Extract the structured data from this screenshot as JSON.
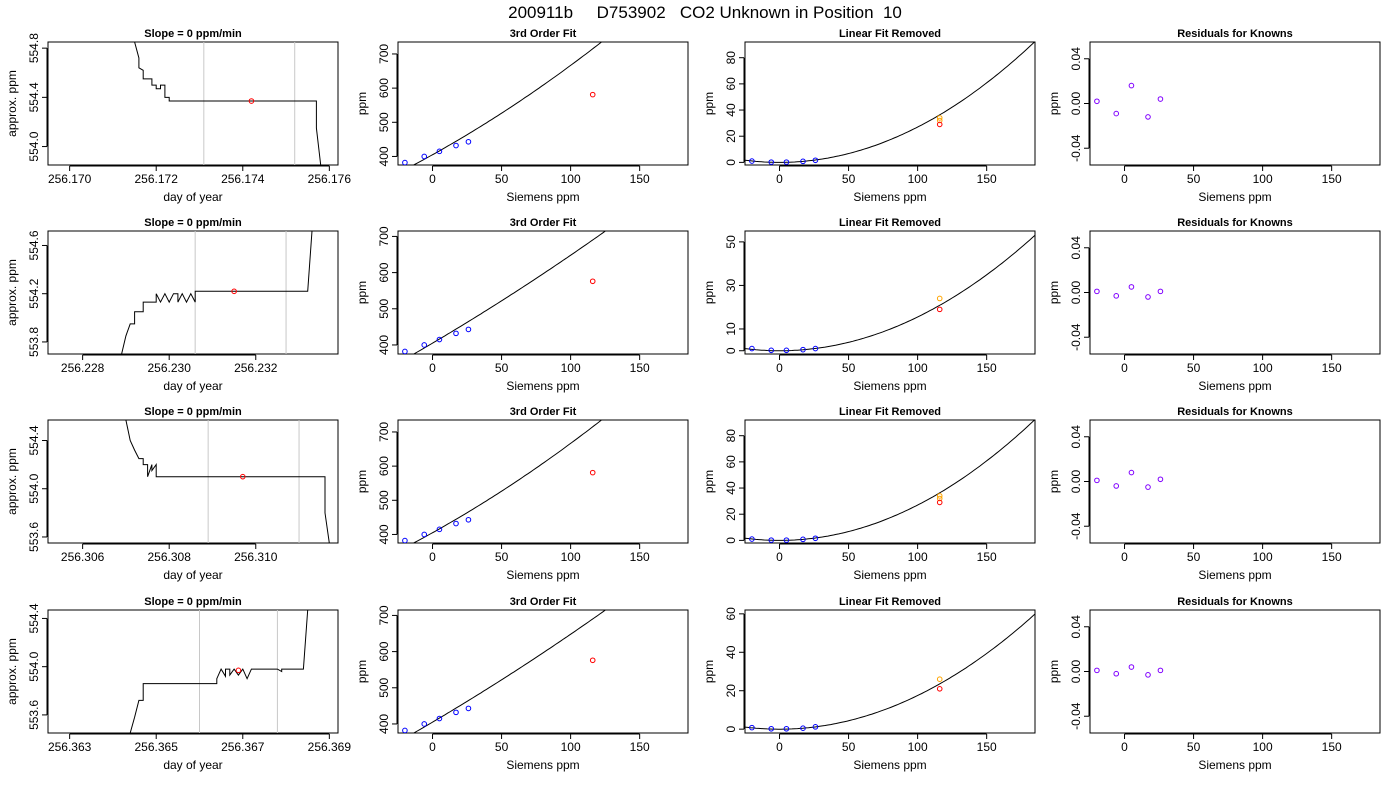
{
  "page_title": "200911b     D753902   CO2 Unknown in Position  10",
  "chart_data": [
    {
      "type": "line",
      "title": "Slope =  0  ppm/min",
      "xlabel": "day of year",
      "ylabel": "approx. ppm",
      "xlim": [
        256.1695,
        256.1762
      ],
      "ylim": [
        553.85,
        554.85
      ],
      "xticks": [
        256.17,
        256.172,
        256.174,
        256.176
      ],
      "xtick_labels": [
        "256.170",
        "256.172",
        "256.174",
        "256.176"
      ],
      "yticks": [
        554.0,
        554.4,
        554.8
      ],
      "ytick_labels": [
        "554.0",
        "554.4",
        "554.8"
      ],
      "vlines": [
        256.1731,
        256.1752
      ],
      "marker": {
        "x": 256.1742,
        "y": 554.37
      },
      "trace": [
        [
          256.1715,
          554.85
        ],
        [
          256.1716,
          554.72
        ],
        [
          256.1716,
          554.64
        ],
        [
          256.1717,
          554.62
        ],
        [
          256.1717,
          554.55
        ],
        [
          256.1719,
          554.55
        ],
        [
          256.1719,
          554.5
        ],
        [
          256.172,
          554.5
        ],
        [
          256.172,
          554.47
        ],
        [
          256.1721,
          554.47
        ],
        [
          256.1721,
          554.5
        ],
        [
          256.1722,
          554.5
        ],
        [
          256.1722,
          554.44
        ],
        [
          256.1722,
          554.47
        ],
        [
          256.1722,
          554.4
        ],
        [
          256.1723,
          554.4
        ],
        [
          256.1723,
          554.37
        ],
        [
          256.1757,
          554.37
        ],
        [
          256.1757,
          554.15
        ],
        [
          256.1758,
          553.85
        ]
      ]
    },
    {
      "type": "scatter",
      "title": "3rd Order Fit",
      "xlabel": "Siemens ppm",
      "ylabel": "ppm",
      "xlim": [
        -25,
        185
      ],
      "ylim": [
        375,
        735
      ],
      "xticks": [
        0,
        50,
        100,
        150
      ],
      "xtick_labels": [
        "0",
        "50",
        "100",
        "150"
      ],
      "yticks": [
        400,
        500,
        600,
        700
      ],
      "ytick_labels": [
        "400",
        "500",
        "600",
        "700"
      ],
      "curve": {
        "coeffs": [
          405,
          2.25,
          0.00365,
          0
        ]
      },
      "known_points": {
        "x": [
          -20,
          -6,
          5,
          17,
          26
        ],
        "y": [
          382,
          400,
          415,
          432,
          443
        ]
      },
      "unknown_points": {
        "x": [
          116
        ],
        "y": [
          581
        ]
      }
    },
    {
      "type": "scatter",
      "title": "Linear Fit Removed",
      "xlabel": "Siemens ppm",
      "ylabel": "ppm",
      "xlim": [
        -25,
        185
      ],
      "ylim": [
        -2,
        92
      ],
      "xticks": [
        0,
        50,
        100,
        150
      ],
      "xtick_labels": [
        "0",
        "50",
        "100",
        "150"
      ],
      "yticks": [
        0,
        20,
        40,
        60,
        80
      ],
      "ytick_labels": [
        "0",
        "20",
        "40",
        "60",
        "80"
      ],
      "curve": {
        "coeffs": [
          0,
          0,
          0.0027,
          0
        ]
      },
      "known_points": {
        "x": [
          -20,
          -6,
          5,
          17,
          26
        ],
        "y": [
          1,
          0.2,
          0.2,
          0.8,
          1.6
        ]
      },
      "unknown_points": {
        "x": [
          116
        ],
        "y": [
          29
        ]
      },
      "orange_points": {
        "x": [
          116,
          116
        ],
        "y": [
          32,
          34
        ]
      }
    },
    {
      "type": "scatter",
      "title": "Residuals for Knowns",
      "xlabel": "Siemens ppm",
      "ylabel": "ppm",
      "xlim": [
        -25,
        185
      ],
      "ylim": [
        -0.055,
        0.055
      ],
      "xticks": [
        0,
        50,
        100,
        150
      ],
      "xtick_labels": [
        "0",
        "50",
        "100",
        "150"
      ],
      "yticks": [
        -0.04,
        0,
        0.04
      ],
      "ytick_labels": [
        "-0.04",
        "0.00",
        "0.04"
      ],
      "points": {
        "x": [
          -20,
          -6,
          5,
          17,
          26
        ],
        "y": [
          0.002,
          -0.009,
          0.016,
          -0.012,
          0.004
        ]
      }
    },
    {
      "type": "line",
      "title": "Slope =  0  ppm/min",
      "xlabel": "day of year",
      "ylabel": "approx. ppm",
      "xlim": [
        256.2272,
        256.2339
      ],
      "ylim": [
        553.7,
        554.72
      ],
      "xticks": [
        256.228,
        256.23,
        256.232
      ],
      "xtick_labels": [
        "256.228",
        "256.230",
        "256.232"
      ],
      "yticks": [
        553.8,
        554.2,
        554.6
      ],
      "ytick_labels": [
        "553.8",
        "554.2",
        "554.6"
      ],
      "vlines": [
        256.2306,
        256.2327
      ],
      "marker": {
        "x": 256.2315,
        "y": 554.22
      },
      "trace": [
        [
          256.2289,
          553.7
        ],
        [
          256.229,
          553.85
        ],
        [
          256.2291,
          553.95
        ],
        [
          256.2292,
          553.95
        ],
        [
          256.2292,
          554.05
        ],
        [
          256.2294,
          554.05
        ],
        [
          256.2294,
          554.13
        ],
        [
          256.2297,
          554.13
        ],
        [
          256.2297,
          554.2
        ],
        [
          256.2298,
          554.13
        ],
        [
          256.2299,
          554.2
        ],
        [
          256.23,
          554.13
        ],
        [
          256.2301,
          554.2
        ],
        [
          256.2302,
          554.2
        ],
        [
          256.2302,
          554.13
        ],
        [
          256.2303,
          554.2
        ],
        [
          256.2304,
          554.13
        ],
        [
          256.2305,
          554.2
        ],
        [
          256.2306,
          554.13
        ],
        [
          256.2306,
          554.22
        ],
        [
          256.2332,
          554.22
        ],
        [
          256.2333,
          554.72
        ]
      ]
    },
    {
      "type": "scatter",
      "title": "3rd Order Fit",
      "xlabel": "Siemens ppm",
      "ylabel": "ppm",
      "xlim": [
        -25,
        185
      ],
      "ylim": [
        375,
        715
      ],
      "xticks": [
        0,
        50,
        100,
        150
      ],
      "xtick_labels": [
        "0",
        "50",
        "100",
        "150"
      ],
      "yticks": [
        400,
        500,
        600,
        700
      ],
      "ytick_labels": [
        "400",
        "500",
        "600",
        "700"
      ],
      "curve": {
        "coeffs": [
          405,
          2.25,
          0.0018,
          0
        ]
      },
      "known_points": {
        "x": [
          -20,
          -6,
          5,
          17,
          26
        ],
        "y": [
          382,
          400,
          415,
          432,
          443
        ]
      },
      "unknown_points": {
        "x": [
          116
        ],
        "y": [
          576
        ]
      }
    },
    {
      "type": "scatter",
      "title": "Linear Fit Removed",
      "xlabel": "Siemens ppm",
      "ylabel": "ppm",
      "xlim": [
        -25,
        185
      ],
      "ylim": [
        -1.5,
        55
      ],
      "xticks": [
        0,
        50,
        100,
        150
      ],
      "xtick_labels": [
        "0",
        "50",
        "100",
        "150"
      ],
      "yticks": [
        0,
        10,
        30,
        50
      ],
      "ytick_labels": [
        "0",
        "10",
        "30",
        "50"
      ],
      "curve": {
        "coeffs": [
          0,
          0,
          0.00155,
          0
        ]
      },
      "known_points": {
        "x": [
          -20,
          -6,
          5,
          17,
          26
        ],
        "y": [
          1,
          0.2,
          0.2,
          0.5,
          1
        ]
      },
      "unknown_points": {
        "x": [
          116
        ],
        "y": [
          19
        ]
      },
      "orange_points": {
        "x": [
          116
        ],
        "y": [
          24
        ]
      }
    },
    {
      "type": "scatter",
      "title": "Residuals for Knowns",
      "xlabel": "Siemens ppm",
      "ylabel": "ppm",
      "xlim": [
        -25,
        185
      ],
      "ylim": [
        -0.055,
        0.055
      ],
      "xticks": [
        0,
        50,
        100,
        150
      ],
      "xtick_labels": [
        "0",
        "50",
        "100",
        "150"
      ],
      "yticks": [
        -0.04,
        0,
        0.04
      ],
      "ytick_labels": [
        "-0.04",
        "0.00",
        "0.04"
      ],
      "points": {
        "x": [
          -20,
          -6,
          5,
          17,
          26
        ],
        "y": [
          0.001,
          -0.003,
          0.005,
          -0.004,
          0.001
        ]
      }
    },
    {
      "type": "line",
      "title": "Slope =  0  ppm/min",
      "xlabel": "day of year",
      "ylabel": "approx. ppm",
      "xlim": [
        256.3052,
        256.3119
      ],
      "ylim": [
        553.55,
        554.57
      ],
      "xticks": [
        256.306,
        256.308,
        256.31
      ],
      "xtick_labels": [
        "256.306",
        "256.308",
        "256.310"
      ],
      "yticks": [
        553.6,
        554.0,
        554.4
      ],
      "ytick_labels": [
        "553.6",
        "554.0",
        "554.4"
      ],
      "vlines": [
        256.3089,
        256.311
      ],
      "marker": {
        "x": 256.3097,
        "y": 554.1
      },
      "trace": [
        [
          256.307,
          554.57
        ],
        [
          256.3071,
          554.4
        ],
        [
          256.3072,
          554.32
        ],
        [
          256.3073,
          554.25
        ],
        [
          256.3074,
          554.25
        ],
        [
          256.3074,
          554.2
        ],
        [
          256.3075,
          554.2
        ],
        [
          256.3075,
          554.1
        ],
        [
          256.3076,
          554.2
        ],
        [
          256.3076,
          554.15
        ],
        [
          256.3077,
          554.2
        ],
        [
          256.3077,
          554.1
        ],
        [
          256.3116,
          554.1
        ],
        [
          256.3116,
          553.8
        ],
        [
          256.3117,
          553.55
        ]
      ]
    },
    {
      "type": "scatter",
      "title": "3rd Order Fit",
      "xlabel": "Siemens ppm",
      "ylabel": "ppm",
      "xlim": [
        -25,
        185
      ],
      "ylim": [
        375,
        735
      ],
      "xticks": [
        0,
        50,
        100,
        150
      ],
      "xtick_labels": [
        "0",
        "50",
        "100",
        "150"
      ],
      "yticks": [
        400,
        500,
        600,
        700
      ],
      "ytick_labels": [
        "400",
        "500",
        "600",
        "700"
      ],
      "curve": {
        "coeffs": [
          405,
          2.25,
          0.00365,
          0
        ]
      },
      "known_points": {
        "x": [
          -20,
          -6,
          5,
          17,
          26
        ],
        "y": [
          382,
          400,
          415,
          432,
          443
        ]
      },
      "unknown_points": {
        "x": [
          116
        ],
        "y": [
          581
        ]
      }
    },
    {
      "type": "scatter",
      "title": "Linear Fit Removed",
      "xlabel": "Siemens ppm",
      "ylabel": "ppm",
      "xlim": [
        -25,
        185
      ],
      "ylim": [
        -2,
        92
      ],
      "xticks": [
        0,
        50,
        100,
        150
      ],
      "xtick_labels": [
        "0",
        "50",
        "100",
        "150"
      ],
      "yticks": [
        0,
        20,
        40,
        60,
        80
      ],
      "ytick_labels": [
        "0",
        "20",
        "40",
        "60",
        "80"
      ],
      "curve": {
        "coeffs": [
          0,
          0,
          0.0027,
          0
        ]
      },
      "known_points": {
        "x": [
          -20,
          -6,
          5,
          17,
          26
        ],
        "y": [
          1,
          0.2,
          0.2,
          0.8,
          1.6
        ]
      },
      "unknown_points": {
        "x": [
          116
        ],
        "y": [
          29
        ]
      },
      "orange_points": {
        "x": [
          116,
          116
        ],
        "y": [
          32,
          34
        ]
      }
    },
    {
      "type": "scatter",
      "title": "Residuals for Knowns",
      "xlabel": "Siemens ppm",
      "ylabel": "ppm",
      "xlim": [
        -25,
        185
      ],
      "ylim": [
        -0.055,
        0.055
      ],
      "xticks": [
        0,
        50,
        100,
        150
      ],
      "xtick_labels": [
        "0",
        "50",
        "100",
        "150"
      ],
      "yticks": [
        -0.04,
        0,
        0.04
      ],
      "ytick_labels": [
        "-0.04",
        "0.00",
        "0.04"
      ],
      "points": {
        "x": [
          -20,
          -6,
          5,
          17,
          26
        ],
        "y": [
          0.001,
          -0.004,
          0.008,
          -0.005,
          0.002
        ]
      }
    },
    {
      "type": "line",
      "title": "Slope =  0  ppm/min",
      "xlabel": "day of year",
      "ylabel": "approx. ppm",
      "xlim": [
        256.3625,
        256.3692
      ],
      "ylim": [
        553.45,
        554.47
      ],
      "xticks": [
        256.363,
        256.365,
        256.367,
        256.369
      ],
      "xtick_labels": [
        "256.363",
        "256.365",
        "256.367",
        "256.369"
      ],
      "yticks": [
        553.6,
        554.0,
        554.4
      ],
      "ytick_labels": [
        "553.6",
        "554.0",
        "554.4"
      ],
      "vlines": [
        256.366,
        256.3678
      ],
      "marker": {
        "x": 256.3669,
        "y": 553.97
      },
      "trace": [
        [
          256.3644,
          553.45
        ],
        [
          256.3645,
          553.58
        ],
        [
          256.3646,
          553.72
        ],
        [
          256.3647,
          553.72
        ],
        [
          256.3647,
          553.86
        ],
        [
          256.3664,
          553.86
        ],
        [
          256.3664,
          553.9
        ],
        [
          256.3665,
          553.98
        ],
        [
          256.3666,
          553.92
        ],
        [
          256.3666,
          553.98
        ],
        [
          256.3667,
          553.98
        ],
        [
          256.3667,
          553.93
        ],
        [
          256.3668,
          553.98
        ],
        [
          256.3669,
          553.93
        ],
        [
          256.367,
          553.98
        ],
        [
          256.3671,
          553.9
        ],
        [
          256.3672,
          553.98
        ],
        [
          256.3678,
          553.98
        ],
        [
          256.3679,
          553.96
        ],
        [
          256.3679,
          553.98
        ],
        [
          256.3684,
          553.98
        ],
        [
          256.3685,
          554.47
        ]
      ]
    },
    {
      "type": "scatter",
      "title": "3rd Order Fit",
      "xlabel": "Siemens ppm",
      "ylabel": "ppm",
      "xlim": [
        -25,
        185
      ],
      "ylim": [
        375,
        715
      ],
      "xticks": [
        0,
        50,
        100,
        150
      ],
      "xtick_labels": [
        "0",
        "50",
        "100",
        "150"
      ],
      "yticks": [
        400,
        500,
        600,
        700
      ],
      "ytick_labels": [
        "400",
        "500",
        "600",
        "700"
      ],
      "curve": {
        "coeffs": [
          405,
          2.25,
          0.0018,
          0
        ]
      },
      "known_points": {
        "x": [
          -20,
          -6,
          5,
          17,
          26
        ],
        "y": [
          382,
          400,
          415,
          432,
          443
        ]
      },
      "unknown_points": {
        "x": [
          116
        ],
        "y": [
          576
        ]
      }
    },
    {
      "type": "scatter",
      "title": "Linear Fit Removed",
      "xlabel": "Siemens ppm",
      "ylabel": "ppm",
      "xlim": [
        -25,
        185
      ],
      "ylim": [
        -2,
        62
      ],
      "xticks": [
        0,
        50,
        100,
        150
      ],
      "xtick_labels": [
        "0",
        "50",
        "100",
        "150"
      ],
      "yticks": [
        0,
        20,
        40,
        60
      ],
      "ytick_labels": [
        "0",
        "20",
        "40",
        "60"
      ],
      "curve": {
        "coeffs": [
          0,
          0,
          0.00175,
          0
        ]
      },
      "known_points": {
        "x": [
          -20,
          -6,
          5,
          17,
          26
        ],
        "y": [
          0.8,
          0.2,
          0.2,
          0.5,
          1.2
        ]
      },
      "unknown_points": {
        "x": [
          116
        ],
        "y": [
          21
        ]
      },
      "orange_points": {
        "x": [
          116
        ],
        "y": [
          26
        ]
      }
    },
    {
      "type": "scatter",
      "title": "Residuals for Knowns",
      "xlabel": "Siemens ppm",
      "ylabel": "ppm",
      "xlim": [
        -25,
        185
      ],
      "ylim": [
        -0.055,
        0.055
      ],
      "xticks": [
        0,
        50,
        100,
        150
      ],
      "xtick_labels": [
        "0",
        "50",
        "100",
        "150"
      ],
      "yticks": [
        -0.04,
        0,
        0.04
      ],
      "ytick_labels": [
        "-0.04",
        "0.00",
        "0.04"
      ],
      "points": {
        "x": [
          -20,
          -6,
          5,
          17,
          26
        ],
        "y": [
          0.001,
          -0.002,
          0.004,
          -0.003,
          0.001
        ]
      }
    }
  ],
  "colors": {
    "axis": "#000000",
    "line": "#000000",
    "vline": "#c8c8c8",
    "red": "#ff0000",
    "blue": "#0000ff",
    "purple": "#8000ff",
    "orange": "#ffa500"
  }
}
